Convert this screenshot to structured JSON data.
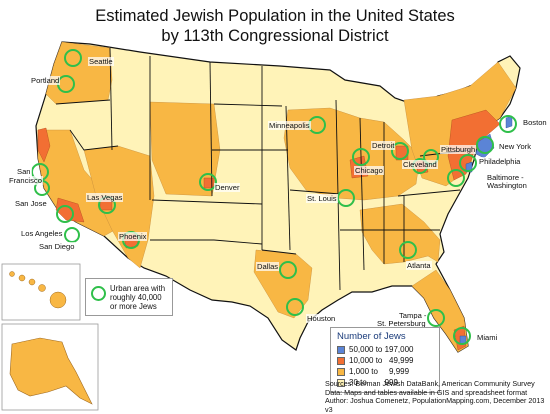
{
  "title_line1": "Estimated Jewish Population in the United States",
  "title_line2": "by 113th Congressional District",
  "colors": {
    "bin1": "#5b84d6",
    "bin2": "#f26f33",
    "bin3": "#f8b744",
    "bin4": "#fff3b8",
    "state_border": "#111111",
    "district_border": "#c48a3a",
    "urban_ring": "#2fbf4a"
  },
  "legend": {
    "title": "Number of Jews",
    "bins": [
      {
        "label": "50,000 to 197,000",
        "color": "#5b84d6"
      },
      {
        "label": "10,000 to   49,999",
        "color": "#f26f33"
      },
      {
        "label": "1,000 to     9,999",
        "color": "#f8b744"
      },
      {
        "label": "30 to        999",
        "color": "#fff3b8"
      }
    ]
  },
  "urban_legend": {
    "line1": "Urban area with",
    "line2": "roughly 40,000",
    "line3": "or more Jews"
  },
  "cities": [
    {
      "name": "Seattle"
    },
    {
      "name": "Portland"
    },
    {
      "name": "San"
    },
    {
      "name": "Francisco"
    },
    {
      "name": "San Jose"
    },
    {
      "name": "Los Angeles"
    },
    {
      "name": "San Diego"
    },
    {
      "name": "Las Vegas"
    },
    {
      "name": "Phoenix"
    },
    {
      "name": "Denver"
    },
    {
      "name": "Minneapolis"
    },
    {
      "name": "Chicago"
    },
    {
      "name": "Detroit"
    },
    {
      "name": "Cleveland"
    },
    {
      "name": "Pittsburgh"
    },
    {
      "name": "St. Louis"
    },
    {
      "name": "Dallas"
    },
    {
      "name": "Houston"
    },
    {
      "name": "Atlanta"
    },
    {
      "name": "Tampa -"
    },
    {
      "name": "St. Petersburg"
    },
    {
      "name": "Miami"
    },
    {
      "name": "Boston"
    },
    {
      "name": "New York"
    },
    {
      "name": "Philadelphia"
    },
    {
      "name": "Baltimore -"
    },
    {
      "name": "Washington"
    }
  ],
  "sources": {
    "line1": "Sources: Berman Jewish DataBank, American Community Survey",
    "line2": "Data: Maps and tables available in GIS and spreadsheet format",
    "line3": "Author: Joshua Comenetz, PopulationMapping.com, December 2013 v3"
  }
}
